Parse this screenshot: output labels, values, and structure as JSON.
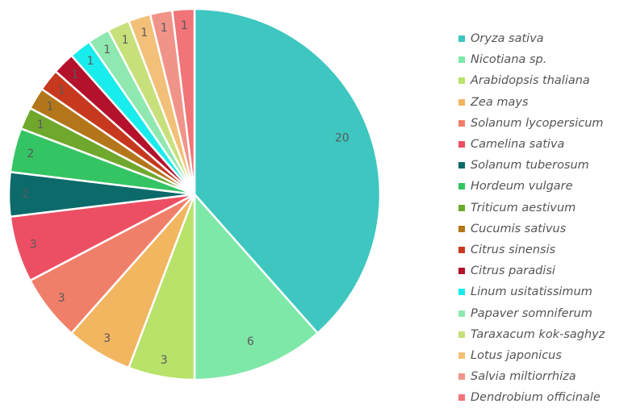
{
  "chart_data": {
    "type": "pie",
    "legend_position": "right",
    "series": [
      {
        "name": "Oryza sativa",
        "value": 20,
        "color": "#3ec6c0"
      },
      {
        "name": "Nicotiana sp.",
        "value": 6,
        "color": "#7ee8a8"
      },
      {
        "name": "Arabidopsis thaliana",
        "value": 3,
        "color": "#b8e26a"
      },
      {
        "name": "Zea mays",
        "value": 3,
        "color": "#f2b560"
      },
      {
        "name": "Solanum lycopersicum",
        "value": 3,
        "color": "#f07f6a"
      },
      {
        "name": "Camelina sativa",
        "value": 3,
        "color": "#ec4f63"
      },
      {
        "name": "Solanum tuberosum",
        "value": 2,
        "color": "#0d6a6a"
      },
      {
        "name": "Hordeum vulgare",
        "value": 2,
        "color": "#35c463"
      },
      {
        "name": "Triticum aestivum",
        "value": 1,
        "color": "#6fa82c"
      },
      {
        "name": "Cucumis sativus",
        "value": 1,
        "color": "#b3761a"
      },
      {
        "name": "Citrus sinensis",
        "value": 1,
        "color": "#c7391f"
      },
      {
        "name": "Citrus paradisi",
        "value": 1,
        "color": "#b3112c"
      },
      {
        "name": "Linum usitatissimum",
        "value": 1,
        "color": "#19ecec"
      },
      {
        "name": "Papaver somniferum",
        "value": 1,
        "color": "#8fe8b0"
      },
      {
        "name": "Taraxacum kok-saghyz",
        "value": 1,
        "color": "#c8e07a"
      },
      {
        "name": "Lotus japonicus",
        "value": 1,
        "color": "#f2c078"
      },
      {
        "name": "Salvia miltiorrhiza",
        "value": 1,
        "color": "#f0948a"
      },
      {
        "name": "Dendrobium officinale",
        "value": 1,
        "color": "#f07478"
      }
    ]
  }
}
